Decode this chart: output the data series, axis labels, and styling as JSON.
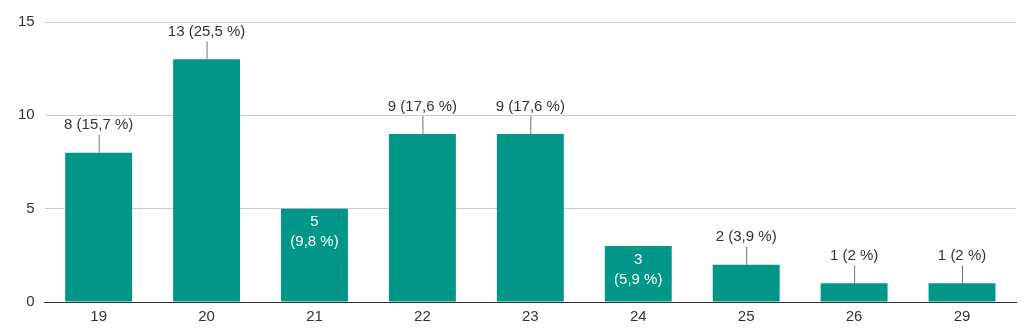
{
  "chart_data": {
    "type": "bar",
    "categories": [
      "19",
      "20",
      "21",
      "22",
      "23",
      "24",
      "25",
      "26",
      "29"
    ],
    "values": [
      8,
      13,
      5,
      9,
      9,
      3,
      2,
      1,
      1
    ],
    "value_labels": [
      "8 (15,7 %)",
      "13 (25,5 %)",
      "5 (9,8 %)",
      "9 (17,6 %)",
      "9 (17,6 %)",
      "3 (5,9 %)",
      "2 (3,9 %)",
      "1 (2 %)",
      "1 (2 %)"
    ],
    "color": "#009688",
    "ylim": [
      0,
      15
    ],
    "yticks": [
      0,
      5,
      10,
      15
    ],
    "grid": "y",
    "legend": false
  }
}
